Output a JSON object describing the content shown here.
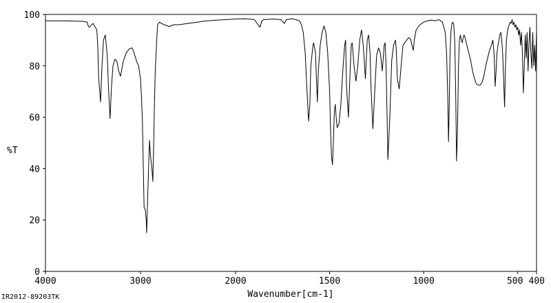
{
  "chart_data": {
    "type": "line",
    "xlabel": "Wavenumber[cm-1]",
    "ylabel": "%T",
    "xlim": [
      4000,
      400
    ],
    "ylim": [
      0,
      100
    ],
    "x_ticks": [
      4000,
      3000,
      2000,
      1500,
      1000,
      500,
      400
    ],
    "y_ticks": [
      0,
      20,
      40,
      60,
      80,
      100
    ],
    "grid": false,
    "series": [
      {
        "color": "#000000",
        "x": [
          4000,
          3800,
          3600,
          3560,
          3550,
          3540,
          3500,
          3460,
          3450,
          3440,
          3420,
          3405,
          3390,
          3370,
          3350,
          3335,
          3320,
          3305,
          3290,
          3270,
          3250,
          3230,
          3210,
          3195,
          3180,
          3150,
          3120,
          3090,
          3070,
          3060,
          3050,
          3040,
          3020,
          3000,
          2990,
          2980,
          2970,
          2962,
          2950,
          2940,
          2935,
          2925,
          2915,
          2905,
          2895,
          2880,
          2870,
          2862,
          2855,
          2845,
          2830,
          2820,
          2800,
          2780,
          2750,
          2700,
          2650,
          2600,
          2500,
          2400,
          2350,
          2300,
          2200,
          2100,
          2000,
          1950,
          1900,
          1870,
          1860,
          1850,
          1800,
          1760,
          1740,
          1730,
          1700,
          1680,
          1660,
          1650,
          1640,
          1630,
          1620,
          1612,
          1605,
          1600,
          1590,
          1585,
          1575,
          1570,
          1565,
          1560,
          1550,
          1540,
          1530,
          1520,
          1510,
          1500,
          1495,
          1490,
          1485,
          1480,
          1475,
          1470,
          1465,
          1460,
          1450,
          1440,
          1430,
          1420,
          1415,
          1410,
          1400,
          1390,
          1385,
          1380,
          1370,
          1360,
          1350,
          1340,
          1330,
          1320,
          1310,
          1300,
          1293,
          1285,
          1280,
          1270,
          1260,
          1250,
          1240,
          1230,
          1220,
          1210,
          1205,
          1200,
          1195,
          1190,
          1180,
          1170,
          1160,
          1150,
          1145,
          1140,
          1130,
          1120,
          1110,
          1100,
          1090,
          1080,
          1070,
          1062,
          1055,
          1050,
          1040,
          1020,
          1000,
          980,
          960,
          940,
          920,
          900,
          885,
          878,
          872,
          868,
          864,
          860,
          855,
          850,
          845,
          840,
          835,
          830,
          825,
          820,
          815,
          810,
          805,
          800,
          795,
          790,
          785,
          780,
          770,
          760,
          750,
          740,
          730,
          720,
          710,
          700,
          690,
          680,
          670,
          660,
          650,
          640,
          632,
          625,
          620,
          615,
          610,
          605,
          600,
          595,
          590,
          585,
          580,
          575,
          570,
          565,
          560,
          555,
          550,
          545,
          540,
          535,
          530,
          525,
          520,
          515,
          510,
          505,
          500,
          495,
          490,
          485,
          480,
          475,
          470,
          465,
          460,
          455,
          450,
          445,
          440,
          435,
          430,
          425,
          420,
          415,
          410,
          405,
          400
        ],
        "y": [
          97.5,
          97.5,
          97.3,
          97.0,
          95.5,
          95.0,
          96.5,
          94.0,
          88.0,
          75.0,
          66.0,
          80.0,
          90.0,
          92.0,
          84.0,
          70.0,
          59.5,
          72.0,
          80.0,
          82.5,
          82.0,
          78.0,
          76.0,
          79.0,
          82.0,
          85.0,
          86.5,
          87.0,
          85.5,
          84.0,
          83.0,
          81.5,
          80.0,
          75.0,
          68.0,
          58.0,
          40.0,
          25.0,
          24.0,
          20.0,
          15.0,
          28.0,
          40.0,
          51.0,
          45.0,
          40.0,
          35.0,
          48.0,
          62.0,
          78.0,
          90.0,
          96.0,
          97.0,
          96.5,
          96.0,
          95.3,
          96.0,
          96.0,
          96.5,
          97.0,
          97.3,
          97.5,
          97.8,
          98.0,
          98.2,
          98.3,
          98.0,
          95.0,
          97.5,
          98.0,
          98.2,
          98.0,
          96.5,
          98.0,
          98.3,
          98.0,
          97.5,
          96.0,
          93.0,
          85.0,
          70.0,
          58.5,
          65.0,
          80.0,
          87.0,
          89.0,
          85.0,
          75.0,
          66.0,
          78.0,
          88.0,
          93.0,
          95.5,
          93.0,
          85.0,
          70.0,
          55.0,
          45.0,
          41.5,
          50.0,
          62.0,
          65.0,
          60.0,
          56.0,
          57.5,
          65.0,
          78.0,
          88.0,
          90.0,
          72.0,
          60.0,
          80.0,
          88.0,
          89.0,
          80.0,
          74.0,
          80.0,
          90.0,
          94.0,
          87.0,
          75.0,
          90.0,
          92.0,
          85.0,
          72.0,
          55.5,
          70.0,
          84.0,
          87.0,
          85.0,
          78.0,
          88.0,
          89.0,
          80.0,
          62.0,
          43.5,
          60.0,
          82.0,
          88.0,
          90.0,
          86.0,
          75.0,
          71.0,
          80.0,
          88.0,
          89.0,
          90.0,
          91.0,
          90.5,
          88.0,
          86.0,
          90.0,
          94.0,
          96.0,
          97.0,
          97.5,
          97.8,
          97.5,
          98.0,
          97.0,
          93.0,
          85.0,
          68.0,
          50.5,
          65.0,
          85.0,
          93.0,
          96.5,
          97.0,
          96.0,
          90.0,
          70.0,
          43.0,
          55.0,
          80.0,
          90.0,
          92.0,
          90.0,
          89.0,
          91.0,
          92.0,
          91.0,
          88.0,
          85.0,
          82.0,
          78.0,
          75.0,
          73.0,
          72.5,
          72.5,
          73.5,
          76.0,
          80.0,
          83.0,
          86.0,
          88.0,
          90.0,
          84.0,
          72.0,
          78.0,
          85.0,
          88.0,
          90.0,
          92.0,
          93.0,
          90.0,
          85.0,
          75.0,
          64.0,
          80.0,
          90.0,
          93.0,
          95.0,
          96.0,
          97.0,
          96.5,
          98.0,
          96.0,
          97.0,
          95.0,
          96.0,
          94.0,
          95.0,
          92.0,
          94.0,
          88.0,
          93.0,
          85.0,
          69.5,
          80.0,
          92.0,
          83.0,
          93.0,
          78.0,
          89.0,
          95.0,
          85.0,
          79.0,
          93.0,
          80.0,
          88.0,
          78.0,
          94.0
        ]
      }
    ]
  },
  "footer": {
    "code": "IR2012-89203TK"
  }
}
